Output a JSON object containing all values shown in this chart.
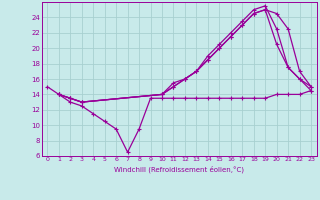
{
  "background_color": "#c8eaea",
  "grid_color": "#a8d0d0",
  "line_color": "#990099",
  "xlabel": "Windchill (Refroidissement éolien,°C)",
  "xlim": [
    -0.5,
    23.5
  ],
  "ylim": [
    6,
    26
  ],
  "yticks": [
    6,
    8,
    10,
    12,
    14,
    16,
    18,
    20,
    22,
    24
  ],
  "xticks": [
    0,
    1,
    2,
    3,
    4,
    5,
    6,
    7,
    8,
    9,
    10,
    11,
    12,
    13,
    14,
    15,
    16,
    17,
    18,
    19,
    20,
    21,
    22,
    23
  ],
  "line1_x": [
    0,
    1,
    2,
    3,
    4,
    5,
    6,
    7,
    8,
    9,
    10,
    11,
    12,
    13,
    14,
    15,
    16,
    17,
    18,
    19,
    20,
    21,
    22,
    23
  ],
  "line1_y": [
    15.0,
    14.0,
    13.0,
    12.5,
    11.5,
    10.5,
    9.5,
    6.5,
    9.5,
    13.5,
    13.5,
    13.5,
    13.5,
    13.5,
    13.5,
    13.5,
    13.5,
    13.5,
    13.5,
    13.5,
    14.0,
    14.0,
    14.0,
    14.5
  ],
  "line2_x": [
    1,
    2,
    3,
    10,
    11,
    12,
    13,
    14,
    15,
    16,
    17,
    18,
    19,
    20,
    21,
    22,
    23
  ],
  "line2_y": [
    14.0,
    13.5,
    13.0,
    14.0,
    15.0,
    16.0,
    17.0,
    18.5,
    20.0,
    21.5,
    23.0,
    24.5,
    25.0,
    24.5,
    22.5,
    17.0,
    15.0
  ],
  "line3_x": [
    1,
    2,
    3,
    10,
    11,
    12,
    13,
    14,
    15,
    16,
    17,
    18,
    19,
    20,
    21,
    22,
    23
  ],
  "line3_y": [
    14.0,
    13.5,
    13.0,
    14.0,
    15.5,
    16.0,
    17.0,
    19.0,
    20.5,
    22.0,
    23.5,
    25.0,
    25.5,
    22.5,
    17.5,
    16.0,
    15.0
  ],
  "line4_x": [
    1,
    2,
    3,
    10,
    11,
    12,
    13,
    14,
    15,
    16,
    17,
    18,
    19,
    20,
    21,
    22,
    23
  ],
  "line4_y": [
    14.0,
    13.5,
    13.0,
    14.0,
    15.0,
    16.0,
    17.0,
    18.5,
    20.0,
    21.5,
    23.0,
    24.5,
    25.0,
    20.5,
    17.5,
    16.0,
    14.5
  ]
}
